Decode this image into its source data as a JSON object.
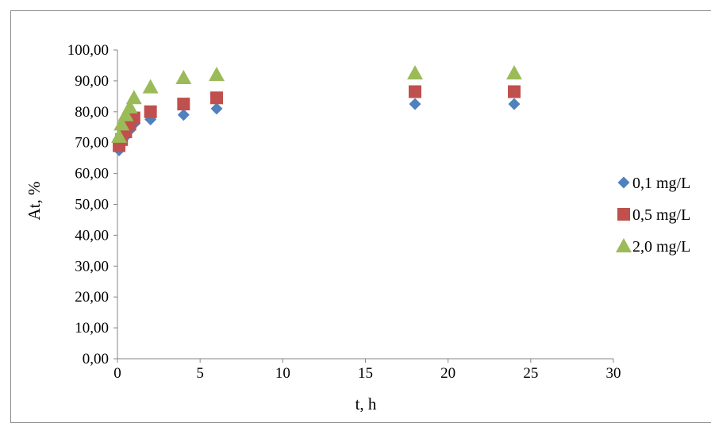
{
  "chart_data": {
    "type": "scatter",
    "xlabel": "t, h",
    "ylabel": "At,  %",
    "xlim": [
      0,
      30
    ],
    "ylim": [
      0,
      100
    ],
    "x_ticks": [
      "0",
      "5",
      "10",
      "15",
      "20",
      "25",
      "30"
    ],
    "y_ticks": [
      "0,00",
      "10,00",
      "20,00",
      "30,00",
      "40,00",
      "50,00",
      "60,00",
      "70,00",
      "80,00",
      "90,00",
      "100,00"
    ],
    "grid": false,
    "legend_position": "right",
    "series": [
      {
        "name": "0,1 mg/L",
        "marker": "diamond",
        "color": "#4f81bd",
        "x": [
          0.1,
          0.25,
          0.5,
          0.75,
          1,
          2,
          4,
          6,
          18,
          24
        ],
        "y": [
          67.5,
          70,
          72,
          74,
          76,
          77.5,
          79,
          81,
          82.5,
          82.5
        ]
      },
      {
        "name": "0,5 mg/L",
        "marker": "square",
        "color": "#c0504d",
        "x": [
          0.1,
          0.25,
          0.5,
          0.75,
          1,
          2,
          4,
          6,
          18,
          24
        ],
        "y": [
          69,
          71,
          73.5,
          76,
          78,
          80,
          82.5,
          84.5,
          86.5,
          86.5
        ]
      },
      {
        "name": "2,0 mg/L",
        "marker": "triangle",
        "color": "#9bbb59",
        "x": [
          0.1,
          0.25,
          0.5,
          0.75,
          1,
          2,
          4,
          6,
          18,
          24
        ],
        "y": [
          72,
          76,
          79,
          81.5,
          84.5,
          88,
          91,
          92,
          92.5,
          92.5
        ]
      }
    ]
  }
}
